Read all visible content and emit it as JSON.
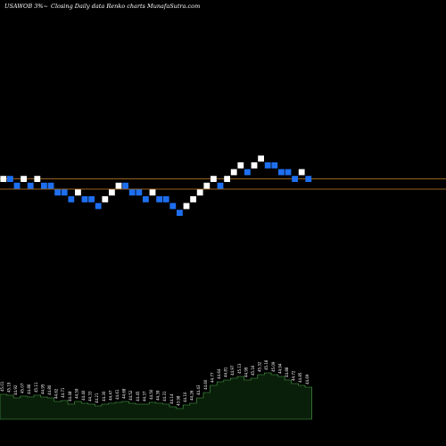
{
  "header": {
    "symbol": "USAWOB 3%~",
    "caption": "Closing Daily data  Renko  charts MunafaSutra.com"
  },
  "colors": {
    "background": "#000000",
    "up_brick": "#ffffff",
    "down_brick": "#1e6ff0",
    "reference_line": "#c8832a",
    "volume_fill": "#0a1f0a",
    "volume_stroke": "#4aa64a"
  },
  "chart_data": {
    "type": "renko",
    "brick_levels": [
      6,
      6,
      5,
      6,
      5,
      6,
      5,
      5,
      4,
      4,
      3,
      4,
      3,
      3,
      2,
      3,
      4,
      5,
      5,
      4,
      4,
      3,
      4,
      3,
      3,
      2,
      1,
      2,
      3,
      4,
      5,
      6,
      5,
      6,
      7,
      8,
      7,
      8,
      9,
      8,
      8,
      7,
      7,
      6,
      7,
      6
    ],
    "brick_directions": [
      "up",
      "down",
      "down",
      "up",
      "down",
      "up",
      "down",
      "down",
      "down",
      "down",
      "down",
      "up",
      "down",
      "down",
      "down",
      "up",
      "up",
      "up",
      "down",
      "down",
      "down",
      "down",
      "up",
      "down",
      "down",
      "down",
      "down",
      "up",
      "up",
      "up",
      "up",
      "up",
      "down",
      "up",
      "up",
      "up",
      "down",
      "up",
      "up",
      "down",
      "down",
      "down",
      "down",
      "down",
      "up",
      "down"
    ],
    "reference_levels": [
      6.5,
      5
    ],
    "volume_levels": [
      28,
      27,
      24,
      26,
      25,
      27,
      25,
      24,
      20,
      21,
      17,
      20,
      18,
      17,
      15,
      17,
      18,
      19,
      20,
      18,
      17,
      17,
      19,
      18,
      17,
      14,
      12,
      16,
      18,
      24,
      30,
      38,
      42,
      44,
      46,
      48,
      44,
      46,
      50,
      52,
      50,
      48,
      44,
      40,
      38,
      36
    ],
    "volume_labels": [
      "45.01",
      "45.19",
      "44.92",
      "45.07",
      "44.86",
      "45.11",
      "44.95",
      "44.80",
      "44.62",
      "44.71",
      "44.48",
      "44.59",
      "44.40",
      "44.33",
      "44.21",
      "44.30",
      "44.47",
      "44.61",
      "44.68",
      "44.52",
      "44.45",
      "44.37",
      "44.50",
      "44.39",
      "44.31",
      "44.14",
      "43.98",
      "44.10",
      "44.26",
      "44.43",
      "44.60",
      "44.77",
      "44.64",
      "44.81",
      "44.97",
      "45.13",
      "44.99",
      "45.16",
      "45.32",
      "45.18",
      "45.09",
      "44.94",
      "44.88",
      "44.72",
      "44.85",
      "44.69"
    ]
  }
}
